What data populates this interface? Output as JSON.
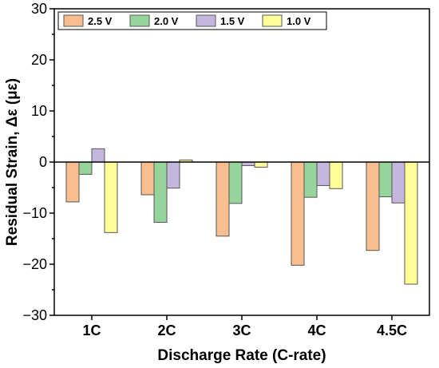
{
  "chart_data": {
    "type": "bar",
    "categories": [
      "1C",
      "2C",
      "3C",
      "4C",
      "4.5C"
    ],
    "series": [
      {
        "name": "2.5 V",
        "color": "#F9BE8F",
        "values": [
          -7.8,
          -6.4,
          -14.5,
          -20.2,
          -17.3
        ]
      },
      {
        "name": "2.0 V",
        "color": "#95D49B",
        "values": [
          -2.4,
          -11.8,
          -8.1,
          -6.9,
          -6.8
        ]
      },
      {
        "name": "1.5 V",
        "color": "#C4B6DC",
        "values": [
          2.6,
          -5.1,
          -0.7,
          -4.6,
          -8.0
        ]
      },
      {
        "name": "1.0 V",
        "color": "#FFFF99",
        "values": [
          -13.8,
          0.4,
          -1.0,
          -5.2,
          -23.9
        ]
      }
    ],
    "title": "",
    "xlabel": "Discharge Rate (C-rate)",
    "ylabel": "Residual Strain, Δε (με)",
    "ylim": [
      -30,
      30
    ],
    "yticks": [
      -30,
      -20,
      -10,
      0,
      10,
      20,
      30
    ],
    "grid": false,
    "legend_position": "top-left"
  }
}
